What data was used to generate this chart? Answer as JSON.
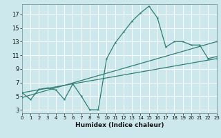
{
  "xlabel": "Humidex (Indice chaleur)",
  "background_color": "#cce8ec",
  "grid_color": "#ffffff",
  "line_color": "#2e7d72",
  "xlim": [
    0,
    23
  ],
  "ylim": [
    2.5,
    18.5
  ],
  "xticks": [
    0,
    1,
    2,
    3,
    4,
    5,
    6,
    7,
    8,
    9,
    10,
    11,
    12,
    13,
    14,
    15,
    16,
    17,
    18,
    19,
    20,
    21,
    22,
    23
  ],
  "yticks": [
    3,
    5,
    7,
    9,
    11,
    13,
    15,
    17
  ],
  "series1_x": [
    0,
    1,
    2,
    3,
    4,
    5,
    6,
    7,
    8,
    9,
    10,
    11,
    12,
    13,
    14,
    15,
    16,
    17,
    18,
    19,
    20,
    21,
    22,
    23
  ],
  "series1_y": [
    5.5,
    4.5,
    6.0,
    6.2,
    5.9,
    4.5,
    6.8,
    5.0,
    3.0,
    3.0,
    10.5,
    12.8,
    14.4,
    16.0,
    17.2,
    18.2,
    16.5,
    12.2,
    13.0,
    13.0,
    12.5,
    12.5,
    10.5,
    10.8
  ],
  "series2_x": [
    0,
    23
  ],
  "series2_y": [
    5.5,
    10.5
  ],
  "series3_x": [
    0,
    23
  ],
  "series3_y": [
    4.8,
    13.0
  ],
  "lw": 0.9,
  "ms": 2.8
}
